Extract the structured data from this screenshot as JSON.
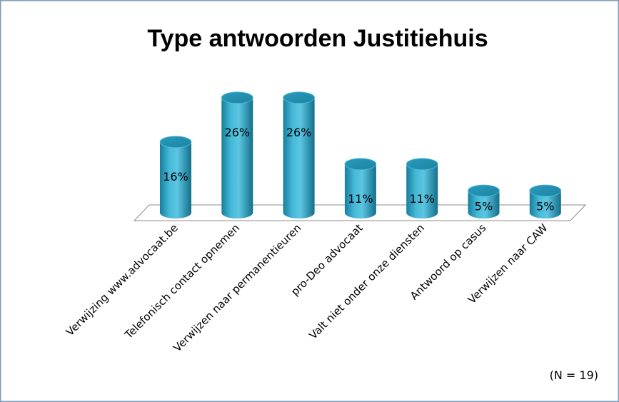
{
  "chart_data": {
    "type": "bar",
    "style": "3d-cylinder",
    "title": "Type antwoorden Justitiehuis",
    "categories": [
      "Verwijzing www.advocaat.be",
      "Telefonisch contact opnemen",
      "Verwijzen naar permanentieuren",
      "pro-Deo advocaat",
      "Valt niet onder onze diensten",
      "Antwoord op casus",
      "Verwijzen naar CAW"
    ],
    "values": [
      16,
      26,
      26,
      11,
      11,
      5,
      5
    ],
    "data_labels": [
      "16%",
      "26%",
      "26%",
      "11%",
      "11%",
      "5%",
      "5%"
    ],
    "unit": "%",
    "ylim": [
      0,
      30
    ],
    "grid": false,
    "legend": "none",
    "bar_color": "#2fa5c6",
    "annotation": "(N = 19)"
  }
}
